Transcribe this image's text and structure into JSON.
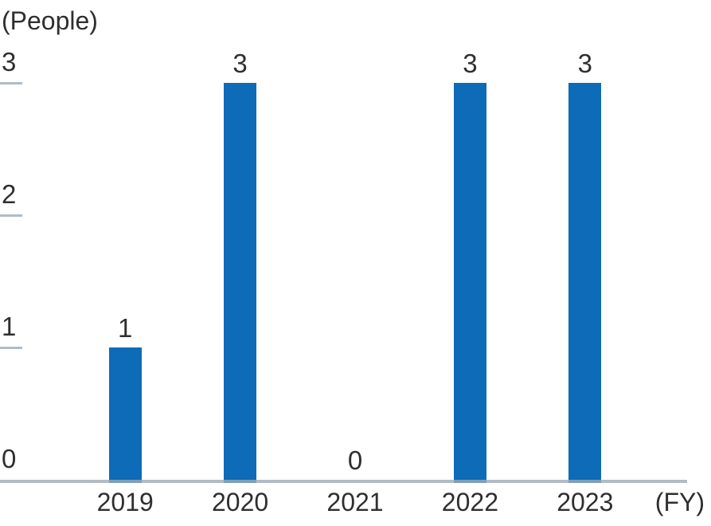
{
  "chart_data": {
    "type": "bar",
    "title": "",
    "categories": [
      "2019",
      "2020",
      "2021",
      "2022",
      "2023"
    ],
    "values": [
      1,
      3,
      0,
      3,
      3
    ],
    "data_labels": [
      "1",
      "3",
      "0",
      "3",
      "3"
    ],
    "y_unit_label": "(People)",
    "x_unit_label": "(FY)",
    "yticks": [
      "0",
      "1",
      "2",
      "3"
    ],
    "ylim": [
      0,
      3
    ],
    "legend": "none",
    "grid": "left-tick-stubs-only",
    "colors": {
      "bar": "#0e6bb8",
      "axis_line": "rgba(158,171,182,0.8)",
      "tick_stub": "#b0bcc6",
      "text": "#2f2f2f",
      "background": "#ffffff"
    }
  }
}
